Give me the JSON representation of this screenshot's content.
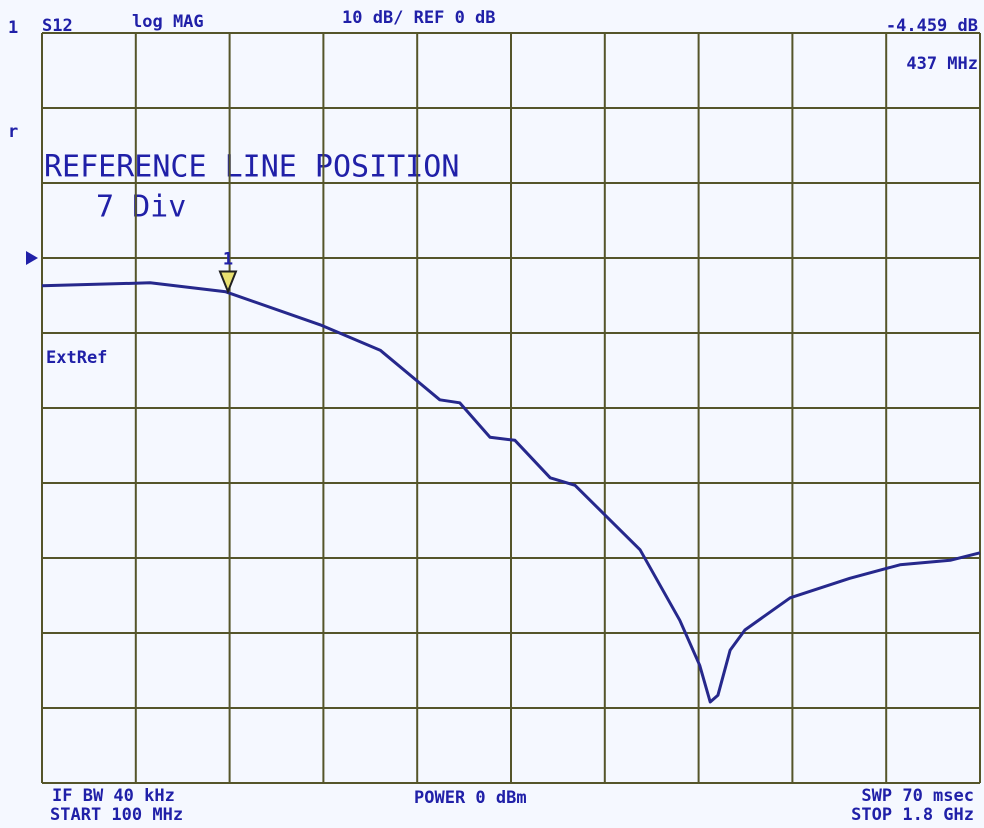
{
  "chart_data": {
    "type": "line",
    "header": {
      "channel": "1",
      "parameter": "S12",
      "format": "log MAG",
      "scale": "10 dB/ REF 0 dB",
      "side": "r"
    },
    "overlay": {
      "title": "REFERENCE LINE POSITION",
      "value": "7 Div"
    },
    "annotation": "ExtRef",
    "footer": {
      "ifbw": "IF BW 40 kHz",
      "start": "START 100 MHz",
      "power": "POWER  0 dBm",
      "sweep": "SWP  70 msec",
      "stop": "STOP  1.8 GHz"
    },
    "x": [
      100,
      296,
      433,
      604,
      713,
      821,
      857,
      912,
      957,
      1021,
      1066,
      1129,
      1184,
      1256,
      1292,
      1311,
      1325,
      1347,
      1374,
      1456,
      1564,
      1655,
      1746,
      1800
    ],
    "series": [
      {
        "name": "S12",
        "color": "#26288c",
        "values": [
          -3.7,
          -3.3,
          -4.5,
          -8.9,
          -12.3,
          -18.9,
          -19.3,
          -23.9,
          -24.3,
          -29.3,
          -30.3,
          -34.9,
          -38.9,
          -48.3,
          -54.3,
          -59.2,
          -58.3,
          -52.3,
          -49.6,
          -45.3,
          -42.7,
          -40.9,
          -40.3,
          -39.3
        ]
      }
    ],
    "marker": {
      "label": "1",
      "x": 437,
      "value": -4.459,
      "value_label": "-4.459 dB",
      "x_label": "437 MHz"
    },
    "reference_level": 0,
    "xlim": [
      100,
      1800
    ],
    "xticks": [
      100,
      270,
      440,
      610,
      780,
      950,
      1120,
      1290,
      1460,
      1630,
      1800
    ],
    "ylim": [
      -70,
      30
    ],
    "yticks": [
      -70,
      -60,
      -50,
      -40,
      -30,
      -20,
      -10,
      0,
      10,
      20,
      30
    ],
    "grid": true
  }
}
